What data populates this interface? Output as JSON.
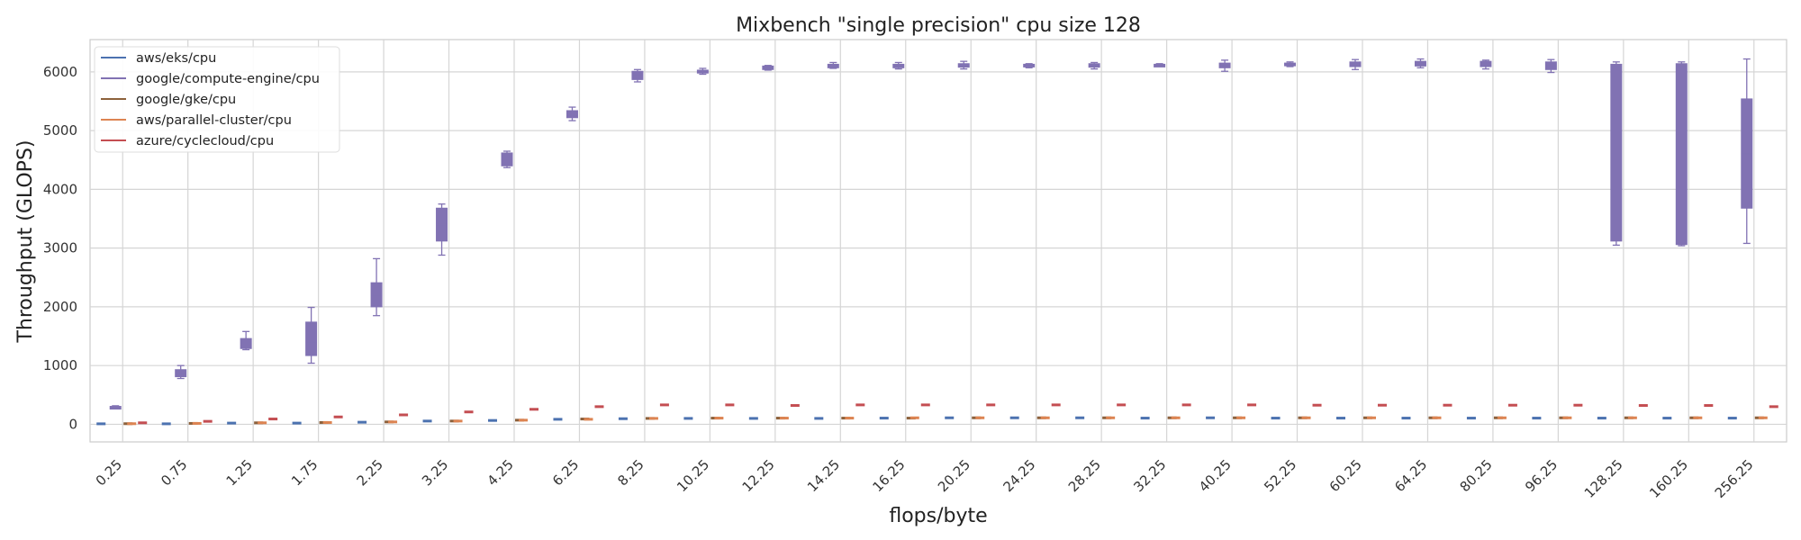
{
  "chart_data": {
    "type": "box",
    "title": "Mixbench \"single precision\" cpu size 128",
    "xlabel": "flops/byte",
    "ylabel": "Throughput (GLOPS)",
    "ylim": [
      -300,
      6550
    ],
    "yticks": [
      0,
      1000,
      2000,
      3000,
      4000,
      5000,
      6000
    ],
    "grid": true,
    "legend_position": "top-left",
    "categories": [
      "0.25",
      "0.75",
      "1.25",
      "1.75",
      "2.25",
      "3.25",
      "4.25",
      "6.25",
      "8.25",
      "10.25",
      "12.25",
      "14.25",
      "16.25",
      "20.25",
      "24.25",
      "28.25",
      "32.25",
      "40.25",
      "52.25",
      "60.25",
      "64.25",
      "80.25",
      "96.25",
      "128.25",
      "160.25",
      "256.25"
    ],
    "series": [
      {
        "name": "aws/eks/cpu",
        "color": "#4C72B0",
        "medians": [
          8,
          8,
          20,
          20,
          35,
          55,
          65,
          85,
          95,
          100,
          100,
          100,
          105,
          110,
          110,
          110,
          105,
          110,
          105,
          105,
          105,
          105,
          105,
          105,
          105,
          105
        ]
      },
      {
        "name": "google/compute-engine/cpu",
        "color": "#8172B3",
        "boxes": [
          {
            "whislo": 265,
            "q1": 275,
            "med": 290,
            "q3": 305,
            "whishi": 315
          },
          {
            "whislo": 780,
            "q1": 810,
            "med": 880,
            "q3": 930,
            "whishi": 1000
          },
          {
            "whislo": 1270,
            "q1": 1290,
            "med": 1350,
            "q3": 1460,
            "whishi": 1580
          },
          {
            "whislo": 1040,
            "q1": 1170,
            "med": 1400,
            "q3": 1740,
            "whishi": 1990
          },
          {
            "whislo": 1850,
            "q1": 2000,
            "med": 2200,
            "q3": 2410,
            "whishi": 2820
          },
          {
            "whislo": 2880,
            "q1": 3120,
            "med": 3400,
            "q3": 3680,
            "whishi": 3750
          },
          {
            "whislo": 4370,
            "q1": 4400,
            "med": 4500,
            "q3": 4620,
            "whishi": 4650
          },
          {
            "whislo": 5170,
            "q1": 5220,
            "med": 5270,
            "q3": 5340,
            "whishi": 5400
          },
          {
            "whislo": 5830,
            "q1": 5870,
            "med": 5950,
            "q3": 6010,
            "whishi": 6040
          },
          {
            "whislo": 5960,
            "q1": 5980,
            "med": 6010,
            "q3": 6030,
            "whishi": 6060
          },
          {
            "whislo": 6030,
            "q1": 6040,
            "med": 6070,
            "q3": 6100,
            "whishi": 6110
          },
          {
            "whislo": 6060,
            "q1": 6070,
            "med": 6100,
            "q3": 6130,
            "whishi": 6160
          },
          {
            "whislo": 6050,
            "q1": 6070,
            "med": 6100,
            "q3": 6130,
            "whishi": 6160
          },
          {
            "whislo": 6050,
            "q1": 6080,
            "med": 6110,
            "q3": 6140,
            "whishi": 6180
          },
          {
            "whislo": 6070,
            "q1": 6090,
            "med": 6110,
            "q3": 6130,
            "whishi": 6140
          },
          {
            "whislo": 6050,
            "q1": 6080,
            "med": 6110,
            "q3": 6140,
            "whishi": 6160
          },
          {
            "whislo": 6100,
            "q1": 6110,
            "med": 6120,
            "q3": 6130,
            "whishi": 6140
          },
          {
            "whislo": 6010,
            "q1": 6070,
            "med": 6110,
            "q3": 6150,
            "whishi": 6200
          },
          {
            "whislo": 6090,
            "q1": 6110,
            "med": 6130,
            "q3": 6150,
            "whishi": 6170
          },
          {
            "whislo": 6040,
            "q1": 6090,
            "med": 6130,
            "q3": 6170,
            "whishi": 6210
          },
          {
            "whislo": 6070,
            "q1": 6100,
            "med": 6140,
            "q3": 6180,
            "whishi": 6220
          },
          {
            "whislo": 6050,
            "q1": 6090,
            "med": 6140,
            "q3": 6180,
            "whishi": 6200
          },
          {
            "whislo": 5990,
            "q1": 6040,
            "med": 6100,
            "q3": 6170,
            "whishi": 6210
          },
          {
            "whislo": 3050,
            "q1": 3120,
            "med": 6100,
            "q3": 6130,
            "whishi": 6170
          },
          {
            "whislo": 3040,
            "q1": 3060,
            "med": 6100,
            "q3": 6140,
            "whishi": 6170
          },
          {
            "whislo": 3080,
            "q1": 3680,
            "med": 4600,
            "q3": 5540,
            "whishi": 6220
          }
        ]
      },
      {
        "name": "google/gke/cpu",
        "color": "#8C613C",
        "medians": [
          10,
          15,
          25,
          30,
          40,
          55,
          70,
          90,
          100,
          105,
          105,
          105,
          105,
          110,
          110,
          110,
          110,
          110,
          110,
          110,
          110,
          110,
          110,
          110,
          110,
          110
        ]
      },
      {
        "name": "aws/parallel-cluster/cpu",
        "color": "#DD8452",
        "medians": [
          10,
          15,
          25,
          30,
          40,
          55,
          70,
          85,
          100,
          105,
          105,
          105,
          110,
          110,
          110,
          110,
          110,
          110,
          110,
          110,
          110,
          110,
          110,
          110,
          110,
          110
        ]
      },
      {
        "name": "azure/cyclecloud/cpu",
        "color": "#C44E52",
        "medians": [
          25,
          50,
          90,
          125,
          160,
          210,
          255,
          300,
          330,
          330,
          320,
          330,
          330,
          330,
          330,
          330,
          330,
          330,
          325,
          325,
          325,
          325,
          325,
          320,
          320,
          300
        ]
      }
    ]
  }
}
